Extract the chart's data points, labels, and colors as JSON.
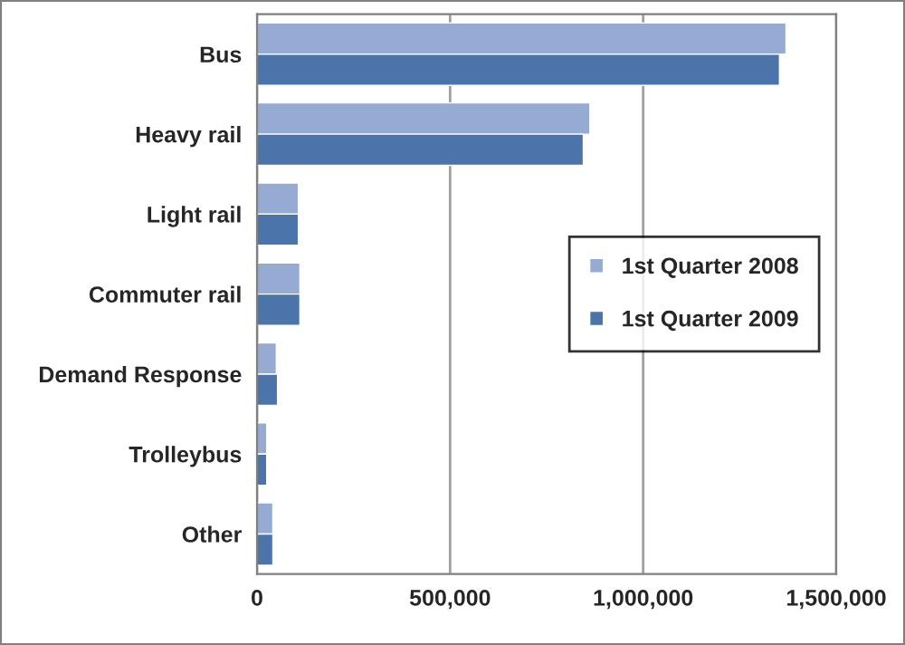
{
  "chart_data": {
    "type": "bar",
    "orientation": "horizontal",
    "categories": [
      "Bus",
      "Heavy rail",
      "Light rail",
      "Commuter rail",
      "Demand Response",
      "Trolleybus",
      "Other"
    ],
    "series": [
      {
        "name": "1st Quarter 2008",
        "color": "#95abd3",
        "values": [
          1370000,
          862000,
          107000,
          111000,
          50000,
          25000,
          41000
        ]
      },
      {
        "name": "1st Quarter 2009",
        "color": "#4a74aa",
        "values": [
          1353000,
          845000,
          107000,
          111000,
          53000,
          25000,
          41000
        ]
      }
    ],
    "xlim": [
      0,
      1500000
    ],
    "xticks": [
      {
        "value": 0,
        "label": "0"
      },
      {
        "value": 500000,
        "label": "500,000"
      },
      {
        "value": 1000000,
        "label": "1,000,000"
      },
      {
        "value": 1500000,
        "label": "1,500,000"
      }
    ],
    "grid": "x",
    "legend": "right"
  }
}
